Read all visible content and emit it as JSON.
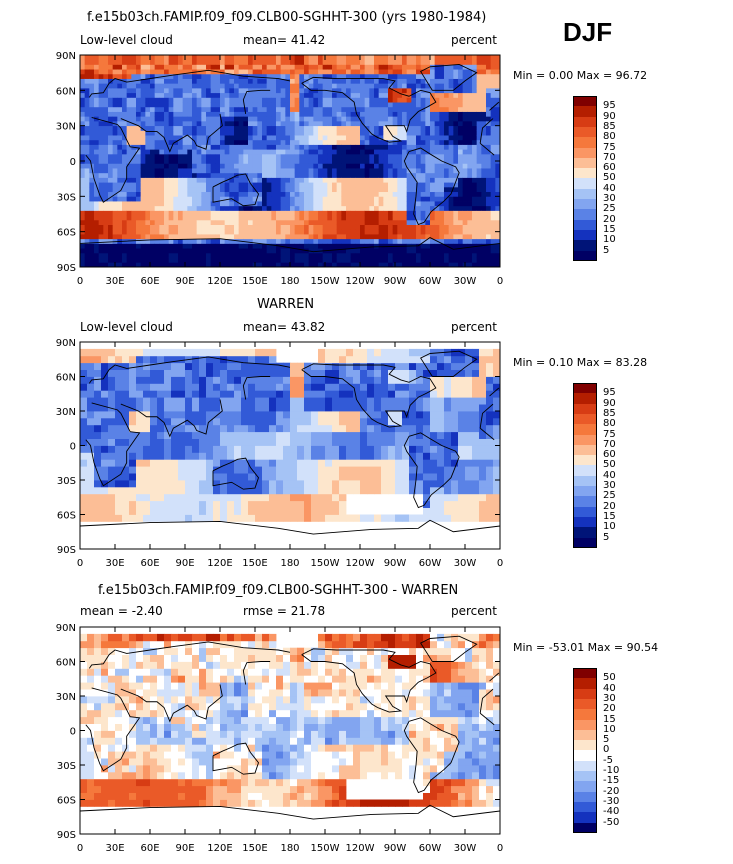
{
  "season": "DJF",
  "panels": [
    {
      "title": "f.e15b03ch.FAMIP.f09_f09.CLB00-SGHHT-300 (yrs 1980-1984)",
      "left_label": "Low-level cloud",
      "center_label": "mean=  41.42",
      "right_label": "percent",
      "min_max": "Min =    0.00 Max =  96.72",
      "colorbar_levels": [
        "95",
        "90",
        "85",
        "80",
        "75",
        "70",
        "60",
        "50",
        "40",
        "30",
        "25",
        "20",
        "15",
        "10",
        "5"
      ],
      "colorbar_colors": [
        "#800000",
        "#b41e00",
        "#d73c14",
        "#ea5a28",
        "#f5783c",
        "#fa9664",
        "#fcbe96",
        "#fde6cc",
        "#d2e1fa",
        "#a5c3f5",
        "#82a5f0",
        "#5a82e6",
        "#325ad7",
        "#1432be",
        "#001478",
        "#000064"
      ],
      "kind": "model"
    },
    {
      "title": "WARREN",
      "left_label": "Low-level cloud",
      "center_label": "mean=  43.82",
      "right_label": "percent",
      "min_max": "Min =    0.10 Max =  83.28",
      "colorbar_levels": [
        "95",
        "90",
        "85",
        "80",
        "75",
        "70",
        "60",
        "50",
        "40",
        "30",
        "25",
        "20",
        "15",
        "10",
        "5"
      ],
      "colorbar_colors": [
        "#800000",
        "#b41e00",
        "#d73c14",
        "#ea5a28",
        "#f5783c",
        "#fa9664",
        "#fcbe96",
        "#fde6cc",
        "#d2e1fa",
        "#a5c3f5",
        "#82a5f0",
        "#5a82e6",
        "#325ad7",
        "#1432be",
        "#001478",
        "#000064"
      ],
      "kind": "obs"
    },
    {
      "title": "f.e15b03ch.FAMIP.f09_f09.CLB00-SGHHT-300 - WARREN",
      "left_label": "mean =   -2.40",
      "center_label": "rmse =   21.78",
      "right_label": "percent",
      "min_max": "Min = -53.01 Max =  90.54",
      "colorbar_levels": [
        "50",
        "40",
        "30",
        "20",
        "15",
        "10",
        "5",
        "0",
        "-5",
        "-10",
        "-15",
        "-20",
        "-30",
        "-40",
        "-50"
      ],
      "colorbar_colors": [
        "#800000",
        "#b41e00",
        "#d73c14",
        "#ea5a28",
        "#f5783c",
        "#fa9664",
        "#fcbe96",
        "#fde6cc",
        "#ffffff",
        "#d2e1fa",
        "#a5c3f5",
        "#82a5f0",
        "#5a82e6",
        "#325ad7",
        "#1432be",
        "#000064"
      ],
      "kind": "diff"
    }
  ],
  "chart_data": {
    "type": "heatmap",
    "x_tick_labels": [
      "0",
      "30E",
      "60E",
      "90E",
      "120E",
      "150E",
      "180",
      "150W",
      "120W",
      "90W",
      "60W",
      "30W",
      "0"
    ],
    "y_tick_labels": [
      "90N",
      "60N",
      "30N",
      "0",
      "30S",
      "60S",
      "90S"
    ],
    "xlim": [
      0,
      360
    ],
    "ylim": [
      -90,
      90
    ],
    "projection": "cylindrical equidistant",
    "grid": false
  }
}
